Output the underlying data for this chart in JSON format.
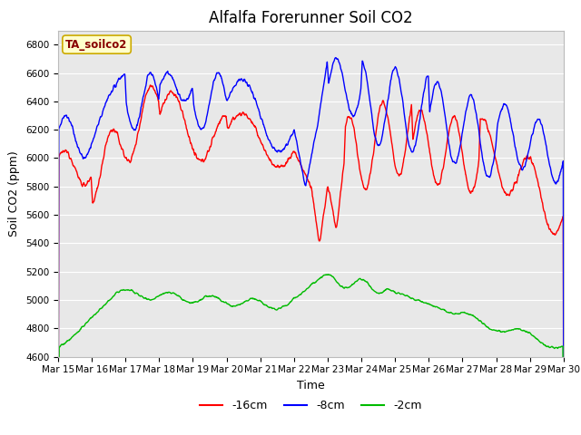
{
  "title": "Alfalfa Forerunner Soil CO2",
  "xlabel": "Time",
  "ylabel": "Soil CO2 (ppm)",
  "annotation": "TA_soilco2",
  "legend_labels": [
    "-16cm",
    "-8cm",
    "-2cm"
  ],
  "legend_colors": [
    "#ff0000",
    "#0000ff",
    "#00bb00"
  ],
  "ylim": [
    4600,
    6900
  ],
  "yticks": [
    4600,
    4800,
    5000,
    5200,
    5400,
    5600,
    5800,
    6000,
    6200,
    6400,
    6600,
    6800
  ],
  "xtick_labels": [
    "Mar 15",
    "Mar 16",
    "Mar 17",
    "Mar 18",
    "Mar 19",
    "Mar 20",
    "Mar 21",
    "Mar 22",
    "Mar 23",
    "Mar 24",
    "Mar 25",
    "Mar 26",
    "Mar 27",
    "Mar 28",
    "Mar 29",
    "Mar 30"
  ],
  "plot_bg_color": "#e8e8e8",
  "grid_color": "#ffffff",
  "title_fontsize": 12,
  "axis_label_fontsize": 9,
  "tick_fontsize": 7.5,
  "line_width": 1.0,
  "annotation_facecolor": "#ffffcc",
  "annotation_edgecolor": "#ccaa00",
  "annotation_textcolor": "#880000"
}
